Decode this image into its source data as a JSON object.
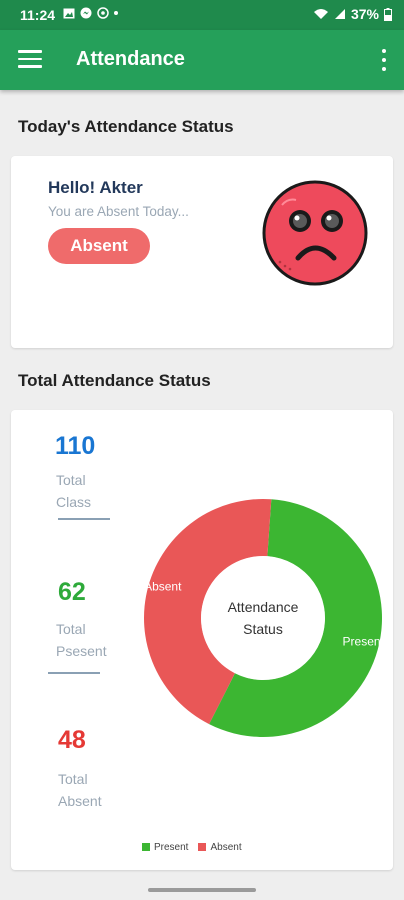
{
  "status_bar": {
    "time": "11:24",
    "battery": "37%"
  },
  "app_bar": {
    "title": "Attendance"
  },
  "today": {
    "section_title": "Today's Attendance Status",
    "greeting": "Hello! Akter",
    "message": "You are Absent Today...",
    "status_button": "Absent"
  },
  "total": {
    "section_title": "Total Attendance Status",
    "stats": [
      {
        "value": "110",
        "label_line1": "Total",
        "label_line2": "Class",
        "color": "#1976d2"
      },
      {
        "value": "62",
        "label_line1": "Total",
        "label_line2": "Psesent",
        "color": "#2eaa3a"
      },
      {
        "value": "48",
        "label_line1": "Total",
        "label_line2": "Absent",
        "color": "#e53935"
      }
    ]
  },
  "chart_data": {
    "type": "pie",
    "title": "Attendance Status",
    "categories": [
      "Present",
      "Absent"
    ],
    "values": [
      62,
      48
    ],
    "colors": [
      "#3cb632",
      "#e95757"
    ],
    "slice_labels": [
      "Present",
      "Absent"
    ],
    "legend": [
      "Present",
      "Absent"
    ],
    "legend_position": "bottom"
  }
}
